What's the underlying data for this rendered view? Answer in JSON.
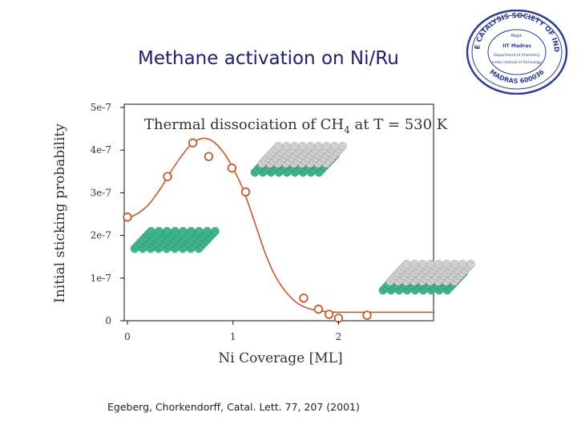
{
  "slide": {
    "title": "Methane activation on Ni/Ru",
    "citation": "Egeberg, Chorkendorff, Catal. Lett. 77, 207 (2001)"
  },
  "logo": {
    "name": "The Catalysis Society of India seal",
    "ring_text": "THE CATALYSIS SOCIETY OF INDIA",
    "bottom_text": "MADRAS 600036",
    "center_lines": [
      "Regd.",
      "IIT Madras",
      "Department of Chemistry",
      "Indian Institute of Technology"
    ]
  },
  "chart_data": {
    "type": "scatter",
    "title": "Thermal dissociation of CH",
    "title_subscript": "4",
    "title_suffix": " at T = 530 K",
    "xlabel": "Ni Coverage [ML]",
    "ylabel": "Initial sticking probability",
    "xlim": [
      0,
      2.9
    ],
    "ylim": [
      0,
      5e-07
    ],
    "xticks": [
      {
        "value": 0,
        "label": "0"
      },
      {
        "value": 1,
        "label": "1"
      },
      {
        "value": 2,
        "label": "2"
      }
    ],
    "yticks": [
      {
        "value": 0,
        "label": "0"
      },
      {
        "value": 1e-07,
        "label": "1e-7"
      },
      {
        "value": 2e-07,
        "label": "2e-7"
      },
      {
        "value": 3e-07,
        "label": "3e-7"
      },
      {
        "value": 4e-07,
        "label": "4e-7"
      },
      {
        "value": 5e-07,
        "label": "5e-7"
      }
    ],
    "grid": false,
    "series": [
      {
        "kind": "points",
        "marker": "open-circle",
        "color": "#c55a2a",
        "x": [
          0.0,
          0.38,
          0.62,
          0.77,
          0.99,
          1.12,
          1.67,
          1.81,
          1.91,
          2.0,
          2.27
        ],
        "y": [
          2.43e-07,
          3.38e-07,
          4.17e-07,
          3.85e-07,
          3.58e-07,
          3.02e-07,
          5.3e-08,
          2.7e-08,
          1.5e-08,
          6e-09,
          1.3e-08
        ]
      },
      {
        "kind": "fit-line",
        "color": "#c55a2a",
        "x": [
          0.0,
          0.1,
          0.2,
          0.3,
          0.4,
          0.5,
          0.6,
          0.7,
          0.8,
          0.9,
          1.0,
          1.1,
          1.2,
          1.3,
          1.4,
          1.5,
          1.6,
          1.7,
          1.8,
          1.9,
          2.0,
          2.1,
          2.3,
          2.5,
          2.7,
          2.9
        ],
        "y": [
          2.4e-07,
          2.52e-07,
          2.72e-07,
          3.05e-07,
          3.45e-07,
          3.82e-07,
          4.12e-07,
          4.27e-07,
          4.22e-07,
          3.98e-07,
          3.58e-07,
          3.05e-07,
          2.35e-07,
          1.62e-07,
          1.05e-07,
          6.8e-08,
          4.3e-08,
          3e-08,
          2.4e-08,
          2.1e-08,
          2e-08,
          2e-08,
          2e-08,
          2e-08,
          2e-08,
          2e-08
        ]
      }
    ],
    "insets": [
      {
        "name": "clean-ru-surface",
        "layers": "green"
      },
      {
        "name": "ni-monolayer-surface",
        "layers": "gray-on-green"
      },
      {
        "name": "ni-multilayer-surface",
        "layers": "gray-on-green"
      }
    ],
    "colors": {
      "green_atom": "#3fb58d",
      "gray_atom": "#cfcfcf",
      "curve": "#c55a2a"
    }
  }
}
